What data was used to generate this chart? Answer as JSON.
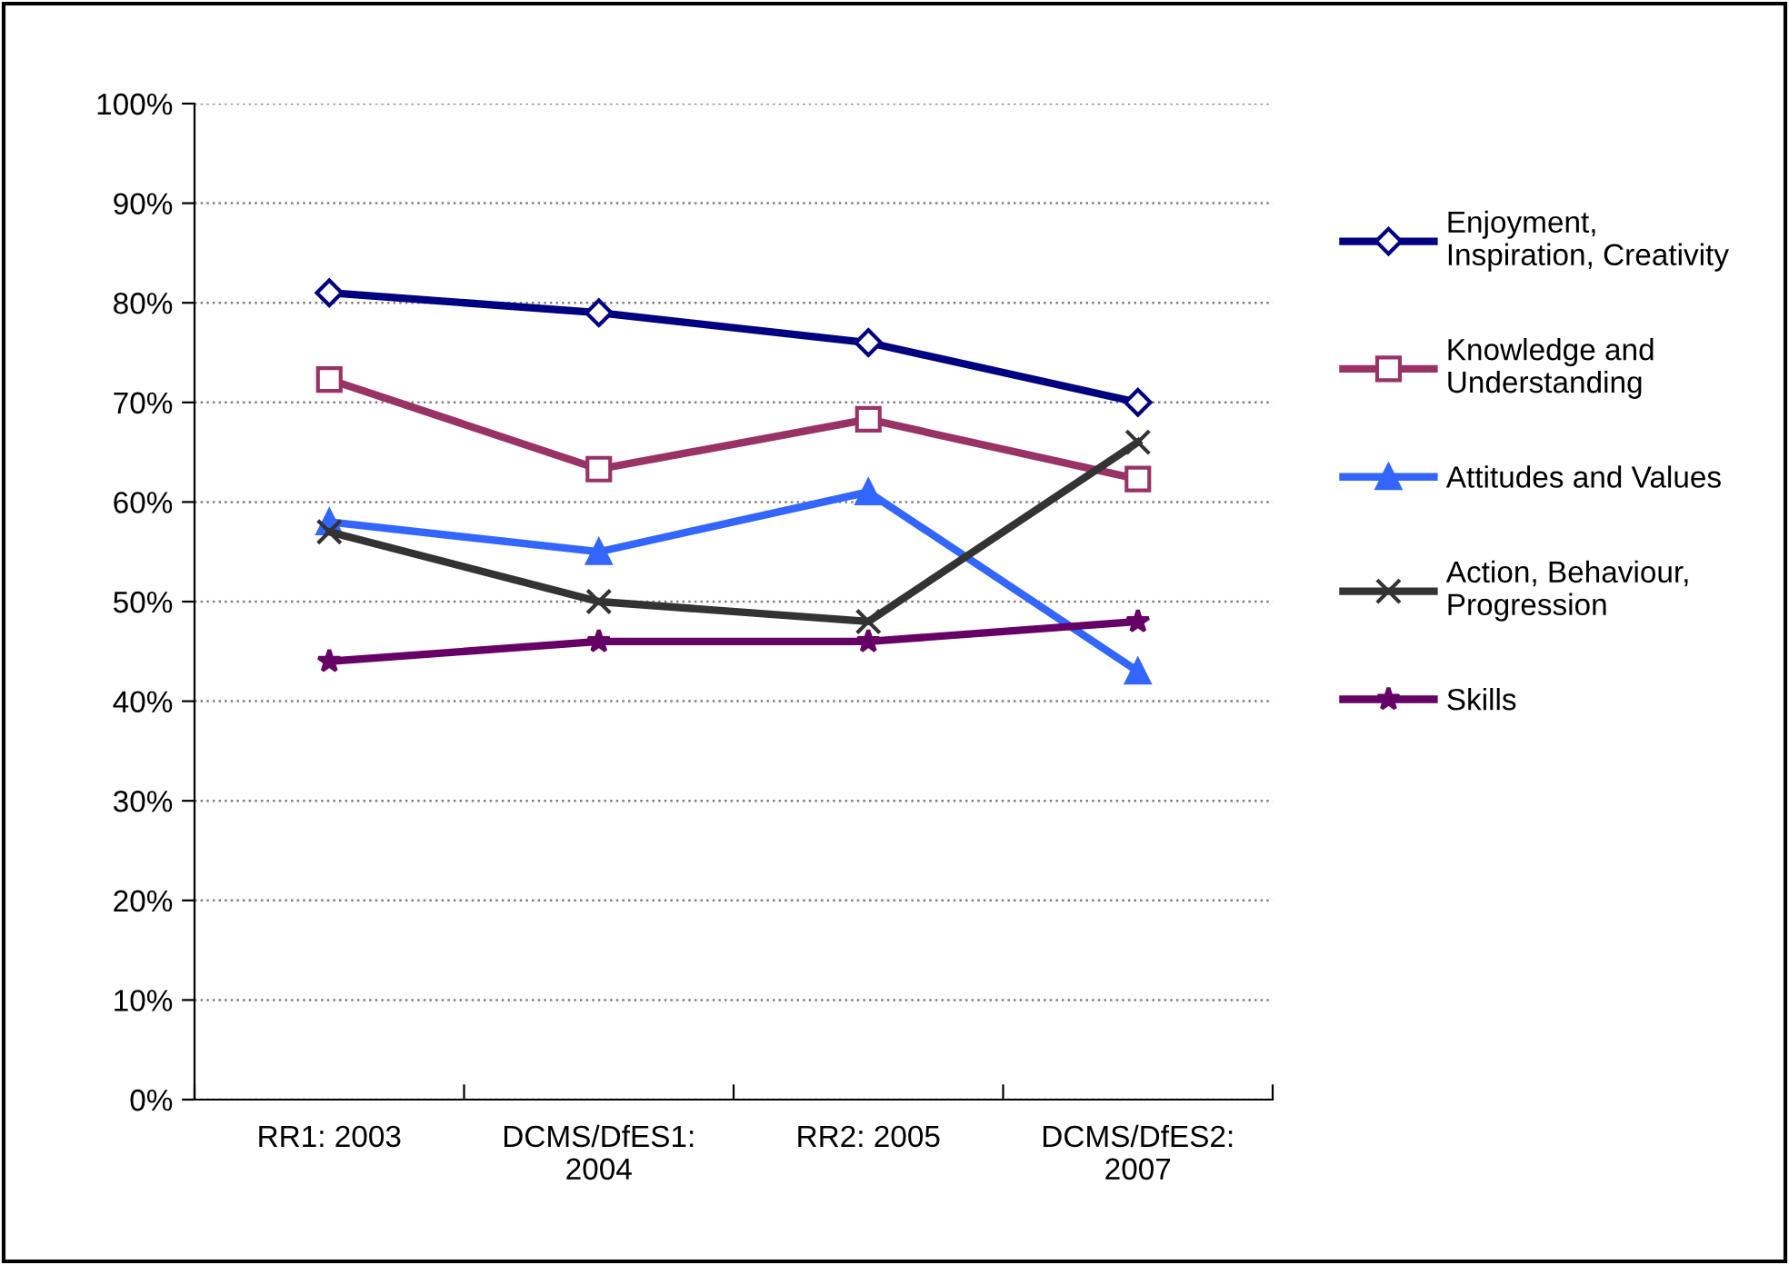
{
  "chart_data": {
    "type": "line",
    "categories": [
      "RR1: 2003",
      "DCMS/DfES1:\n2004",
      "RR2: 2005",
      "DCMS/DfES2:\n2007"
    ],
    "series": [
      {
        "name": "Enjoyment,\nInspiration, Creativity",
        "color": "#000080",
        "marker": "diamond",
        "values": [
          81,
          79,
          76,
          70
        ]
      },
      {
        "name": "Knowledge and\nUnderstanding",
        "color": "#993366",
        "marker": "square",
        "values": [
          72.3,
          63.3,
          68.3,
          62.3
        ]
      },
      {
        "name": "Attitudes and Values",
        "color": "#3366ff",
        "marker": "triangle",
        "values": [
          58,
          55,
          61,
          43
        ]
      },
      {
        "name": "Action, Behaviour,\nProgression",
        "color": "#333333",
        "marker": "cross",
        "values": [
          57,
          50,
          48,
          66
        ]
      },
      {
        "name": "Skills",
        "color": "#660066",
        "marker": "star",
        "values": [
          44,
          46,
          46,
          48
        ]
      }
    ],
    "ylim": [
      0,
      100
    ],
    "yticks": [
      {
        "value": 0,
        "label": "0%"
      },
      {
        "value": 10,
        "label": "10%"
      },
      {
        "value": 20,
        "label": "20%"
      },
      {
        "value": 30,
        "label": "30%"
      },
      {
        "value": 40,
        "label": "40%"
      },
      {
        "value": 50,
        "label": "50%"
      },
      {
        "value": 60,
        "label": "60%"
      },
      {
        "value": 70,
        "label": "70%"
      },
      {
        "value": 80,
        "label": "80%"
      },
      {
        "value": 90,
        "label": "90%"
      },
      {
        "value": 100,
        "label": "100%"
      }
    ],
    "grid": "y",
    "legend": "right"
  }
}
